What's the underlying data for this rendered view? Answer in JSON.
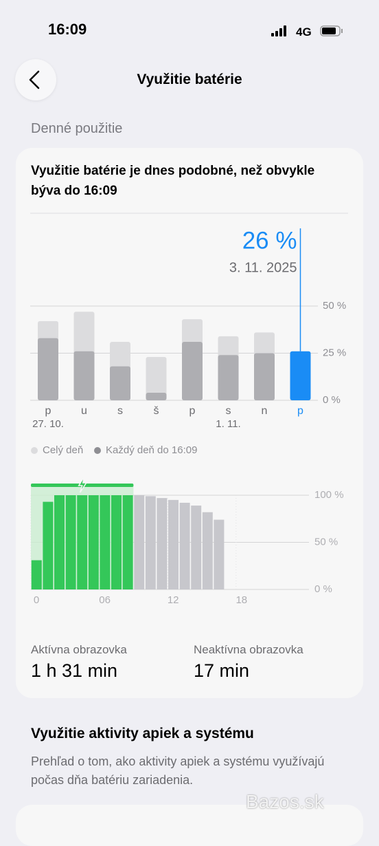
{
  "status_bar": {
    "time": "16:09",
    "network": "4G"
  },
  "header": {
    "title": "Využitie batérie"
  },
  "section_title": "Denné použitie",
  "card": {
    "headline": "Využitie batérie je dnes podobné, než obvykle býva do 16:09",
    "weekly_chart": {
      "type": "bar",
      "categories": [
        "p",
        "u",
        "s",
        "š",
        "p",
        "s",
        "n",
        "p"
      ],
      "date_labels": [
        "27. 10.",
        null,
        null,
        null,
        null,
        "1. 11.",
        null,
        null
      ],
      "selected_date": "3. 11. 2025",
      "series": [
        {
          "name": "Celý deň",
          "color": "#dcdcde",
          "values": [
            42,
            47,
            31,
            23,
            43,
            34,
            36,
            null
          ]
        },
        {
          "name": "Každý deň do 16:09",
          "color": "#aeaeb2",
          "values": [
            33,
            26,
            18,
            4,
            31,
            24,
            25,
            26
          ],
          "value_labels": [
            null,
            null,
            null,
            null,
            null,
            null,
            null,
            "26 %"
          ]
        }
      ],
      "highlight_color": "#1a8cf5",
      "ylim": [
        0,
        50
      ],
      "yticks": [
        {
          "value": 0,
          "label": "0 %"
        },
        {
          "value": 25,
          "label": "25 %"
        },
        {
          "value": 50,
          "label": "50 %"
        }
      ],
      "grid": true
    },
    "hourly_chart": {
      "type": "bar",
      "x": [
        0,
        1,
        2,
        3,
        4,
        5,
        6,
        7,
        8,
        9,
        10,
        11,
        12,
        13,
        14,
        15,
        16
      ],
      "series": [
        {
          "color": "#34c759",
          "values": [
            31,
            93,
            100,
            100,
            100,
            100,
            100,
            100,
            100,
            null,
            null,
            null,
            null,
            null,
            null,
            null,
            null
          ]
        },
        {
          "color": "#c7c7cc",
          "values": [
            null,
            null,
            null,
            null,
            null,
            null,
            null,
            null,
            null,
            100,
            99,
            97,
            95,
            92,
            89,
            82,
            74
          ]
        }
      ],
      "xlim": [
        0,
        24
      ],
      "xticks": [
        0,
        {
          "value": 6,
          "label": "06"
        },
        12,
        18
      ],
      "ylim": [
        0,
        100
      ],
      "yticks": [
        {
          "value": 0,
          "label": "0 %"
        },
        {
          "value": 50,
          "label": "50 %"
        },
        {
          "value": 100,
          "label": "100 %"
        }
      ],
      "grid": true
    },
    "stats": [
      {
        "label": "Aktívna obrazovka",
        "value": "1 h 31 min"
      },
      {
        "label": "Neaktívna obrazovka",
        "value": "17 min"
      }
    ]
  },
  "activity_section": {
    "title": "Využitie aktivity apiek a systému",
    "description": "Prehľad o tom, ako aktivity apiek a systému využívajú počas dňa batériu zariadenia."
  },
  "watermark": "Bazos.sk"
}
